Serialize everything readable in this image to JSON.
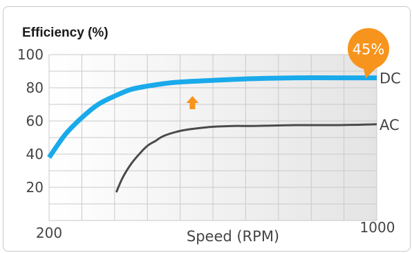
{
  "chart_data": {
    "type": "line",
    "title": "Efficiency (%)",
    "xlabel": "Speed (RPM)",
    "ylabel": "",
    "xlim": [
      200,
      1000
    ],
    "ylim": [
      0,
      100
    ],
    "x_tick_labels": [
      "200",
      "1000"
    ],
    "y_tick_labels": [
      "20",
      "40",
      "60",
      "80",
      "100"
    ],
    "y_ticks": [
      20,
      40,
      60,
      80,
      100
    ],
    "grid": true,
    "series": [
      {
        "name": "DC",
        "color": "#19aaeb",
        "x": [
          200,
          240,
          280,
          320,
          360,
          400,
          440,
          480,
          520,
          600,
          700,
          800,
          900,
          1000
        ],
        "y": [
          38,
          52,
          62,
          70,
          75,
          79,
          81,
          82.5,
          83.5,
          84.5,
          85.5,
          86,
          86,
          86
        ]
      },
      {
        "name": "AC",
        "color": "#4a4a4a",
        "x": [
          364,
          380,
          400,
          420,
          440,
          460,
          480,
          520,
          560,
          600,
          650,
          700,
          800,
          900,
          1000
        ],
        "y": [
          17,
          26,
          34,
          40,
          45,
          48,
          51,
          54,
          55.5,
          56.5,
          57,
          57,
          57.5,
          57.5,
          58
        ]
      }
    ],
    "annotations": [
      {
        "type": "badge",
        "text": "45%",
        "color": "#f7941d",
        "anchor_series": "DC"
      },
      {
        "type": "arrow",
        "direction": "up",
        "color": "#f7941d"
      }
    ]
  }
}
